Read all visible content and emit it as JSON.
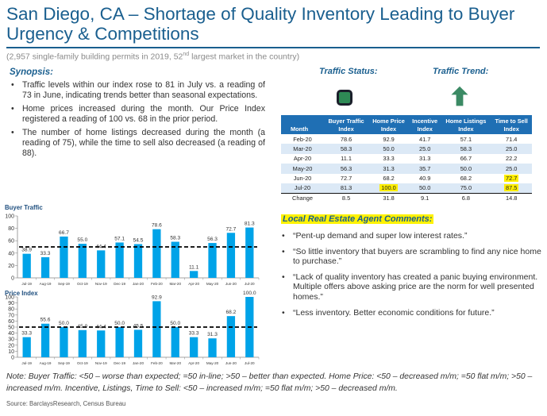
{
  "header": {
    "title": "San Diego, CA – Shortage of Quality Inventory Leading to Buyer Urgency & Competitions",
    "subtitle_pre": "(2,957 single-family building permits in 2019, 52",
    "subtitle_sup": "nd",
    "subtitle_post": " largest market in the country)"
  },
  "synopsis": {
    "heading": "Synopsis:",
    "bullets": [
      "Traffic levels within our index rose to 81 in July vs. a reading of 73 in June, indicating trends better than seasonal expectations.",
      "Home prices increased during the month. Our Price Index registered a reading of 100 vs. 68 in the prior period.",
      "The number of home listings decreased during the month (a reading of 75), while the time to sell also decreased (a reading of 88)."
    ]
  },
  "status": {
    "traffic_status_label": "Traffic Status:",
    "traffic_trend_label": "Traffic Trend:",
    "status_color": "#2e8a55",
    "trend_icon": "up-arrow-icon",
    "trend_color": "#3b8a64"
  },
  "table": {
    "header_top": [
      "",
      "Buyer Traffic",
      "Home Price",
      "Incentive",
      "Home Listings",
      "Time to Sell"
    ],
    "header_bottom": [
      "Month",
      "Index",
      "Index",
      "Index",
      "Index",
      "Index"
    ],
    "rows": [
      [
        "Feb-20",
        "78.6",
        "92.9",
        "41.7",
        "57.1",
        "71.4"
      ],
      [
        "Mar-20",
        "58.3",
        "50.0",
        "25.0",
        "58.3",
        "25.0"
      ],
      [
        "Apr-20",
        "11.1",
        "33.3",
        "31.3",
        "66.7",
        "22.2"
      ],
      [
        "May-20",
        "56.3",
        "31.3",
        "35.7",
        "50.0",
        "25.0"
      ],
      [
        "Jun-20",
        "72.7",
        "68.2",
        "40.9",
        "68.2",
        "72.7"
      ],
      [
        "Jul-20",
        "81.3",
        "100.0",
        "50.0",
        "75.0",
        "87.5"
      ]
    ],
    "change_row": [
      "Change",
      "8.5",
      "31.8",
      "9.1",
      "6.8",
      "14.8"
    ],
    "highlight_color": "#ffef00"
  },
  "comments": {
    "heading": "Local Real Estate Agent Comments:",
    "items": [
      "“Pent-up demand and super low interest rates.”",
      "“So little inventory that buyers are scrambling to find any nice home to purchase.”",
      "“Lack of quality inventory has created a panic buying environment. Multiple offers above asking price are the norm for well presented homes.”",
      "“Less inventory. Better economic conditions for future.”"
    ]
  },
  "chart_data": [
    {
      "type": "bar",
      "title": "Buyer Traffic",
      "categories": [
        "Jul-19",
        "Aug-19",
        "Sep-19",
        "Oct-19",
        "Nov-19",
        "Dec-19",
        "Jan-20",
        "Feb-20",
        "Mar-20",
        "Apr-20",
        "May-20",
        "Jun-20",
        "Jul-20"
      ],
      "values": [
        38.9,
        33.3,
        66.7,
        55.0,
        44.4,
        57.1,
        54.5,
        78.6,
        58.3,
        11.1,
        56.3,
        72.7,
        81.3
      ],
      "value_labels": [
        "38.9",
        "33.3",
        "66.7",
        "55.0",
        "44.4",
        "57.1",
        "54.5",
        "78.6",
        "58.3",
        "11.1",
        "56.3",
        "72.7",
        "81.3"
      ],
      "ylim": [
        0,
        100
      ],
      "yticks": [
        0,
        20,
        40,
        60,
        80,
        100
      ],
      "reference_line": 50,
      "bar_color": "#00a3e8",
      "grid": false
    },
    {
      "type": "bar",
      "title": "Price Index",
      "categories": [
        "Jul-19",
        "Aug-19",
        "Sep-19",
        "Oct-19",
        "Nov-19",
        "Dec-19",
        "Jan-20",
        "Feb-20",
        "Mar-20",
        "Apr-20",
        "May-20",
        "Jun-20",
        "Jul-20"
      ],
      "values": [
        33.3,
        55.6,
        50.0,
        45.0,
        44.4,
        50.0,
        45.5,
        92.9,
        50.0,
        33.3,
        31.3,
        68.2,
        100.0
      ],
      "value_labels": [
        "33.3",
        "55.6",
        "50.0",
        "45.0",
        "44.4",
        "50.0",
        "45.5",
        "92.9",
        "50.0",
        "33.3",
        "31.3",
        "68.2",
        "100.0"
      ],
      "ylim": [
        0,
        100
      ],
      "yticks": [
        0,
        10,
        20,
        30,
        40,
        50,
        60,
        70,
        80,
        90,
        100
      ],
      "reference_line": 50,
      "bar_color": "#00a3e8",
      "grid": false
    }
  ],
  "footer": {
    "note": "Note: Buyer Traffic: <50 – worse than expected; =50 in-line; >50 – better than expected. Home Price: <50 – decreased m/m; =50 flat m/m; >50 – increased m/m. Incentive, Listings, Time to Sell: <50 – increased m/m; =50 flat m/m; >50 – decreased m/m.",
    "source": "Source: BarclaysResearch, Census Bureau"
  }
}
